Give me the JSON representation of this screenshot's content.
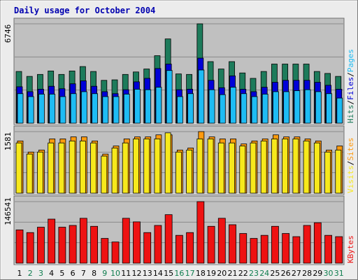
{
  "chart_data": {
    "type": "bar",
    "title": "Daily usage for October 2004",
    "categories": [
      "1",
      "2",
      "3",
      "4",
      "5",
      "6",
      "7",
      "8",
      "9",
      "10",
      "11",
      "12",
      "13",
      "14",
      "15",
      "16",
      "17",
      "18",
      "19",
      "20",
      "21",
      "22",
      "23",
      "24",
      "25",
      "26",
      "27",
      "28",
      "29",
      "30",
      "31"
    ],
    "weekend_days": [
      "2",
      "3",
      "9",
      "10",
      "16",
      "17",
      "23",
      "24",
      "30",
      "31"
    ],
    "colors": {
      "frame": "#ececec",
      "panel": "#c0c0c0",
      "title": "#0000b0",
      "hits": "#1d7b5b",
      "files": "#0000d8",
      "pages": "#1ebcf4",
      "visits": "#f7e81c",
      "sites": "#ff9a0e",
      "kbytes": "#ee1212",
      "weekday_label": "#000000",
      "weekend_label": "#0f7e4f"
    },
    "panels": [
      {
        "max_label": "6746",
        "ylim": [
          0,
          6746
        ],
        "side_labels": [
          {
            "text": "Hits",
            "color": "#1d7b5b"
          },
          {
            "text": "/",
            "color": "#000000"
          },
          {
            "text": "Files",
            "color": "#0000d8"
          },
          {
            "text": "/",
            "color": "#000000"
          },
          {
            "text": "Pages",
            "color": "#1ebcf4"
          }
        ],
        "series": [
          {
            "name": "Hits",
            "color": "#1d7b5b",
            "values": [
              3511,
              3177,
              3311,
              3545,
              3311,
              3545,
              3845,
              3511,
              2909,
              2943,
              3311,
              3478,
              3679,
              4582,
              5720,
              3345,
              3311,
              6746,
              4180,
              3679,
              4180,
              3411,
              3043,
              3511,
              4014,
              4014,
              4014,
              4014,
              3511,
              3378,
              3177
            ]
          },
          {
            "name": "Files",
            "color": "#0000d8",
            "values": [
              2474,
              2140,
              2307,
              2508,
              2340,
              2675,
              2876,
              2508,
              2140,
              2006,
              2274,
              2809,
              3043,
              3712,
              4014,
              2274,
              2307,
              4416,
              2909,
              2408,
              3211,
              2307,
              2140,
              2441,
              2776,
              2910,
              2910,
              2910,
              2776,
              2574,
              2307
            ]
          },
          {
            "name": "Pages",
            "color": "#1ebcf4",
            "values": [
              2006,
              1806,
              1973,
              1973,
              1806,
              2006,
              2140,
              2006,
              1806,
              1806,
              1973,
              2306,
              2274,
              2441,
              3578,
              1806,
              2006,
              3611,
              2274,
              1940,
              2441,
              2006,
              1806,
              1973,
              2140,
              2140,
              2206,
              2274,
              2140,
              2006,
              1706
            ]
          }
        ]
      },
      {
        "max_label": "1581",
        "ylim": [
          0,
          1581
        ],
        "side_labels": [
          {
            "text": "Visits",
            "color": "#f7e81c"
          },
          {
            "text": "/",
            "color": "#000000"
          },
          {
            "text": "Sites",
            "color": "#ff9a0e"
          }
        ],
        "series": [
          {
            "name": "Sites",
            "color": "#ff9a0e",
            "values": [
              1341,
              1056,
              1108,
              1393,
              1393,
              1445,
              1445,
              1341,
              1004,
              1212,
              1393,
              1445,
              1445,
              1497,
              1497,
              1108,
              1160,
              1581,
              1445,
              1393,
              1393,
              1264,
              1341,
              1393,
              1497,
              1445,
              1445,
              1393,
              1341,
              1108,
              1212
            ]
          },
          {
            "name": "Visits",
            "color": "#f7e81c",
            "values": [
              1290,
              1004,
              1056,
              1290,
              1290,
              1341,
              1341,
              1290,
              952,
              1160,
              1290,
              1393,
              1393,
              1393,
              1549,
              1056,
              1108,
              1393,
              1393,
              1290,
              1290,
              1212,
              1290,
              1341,
              1393,
              1393,
              1393,
              1341,
              1290,
              1056,
              1108
            ]
          }
        ]
      },
      {
        "max_label": "146541",
        "ylim": [
          0,
          146541
        ],
        "side_labels": [
          {
            "text": "KBytes",
            "color": "#ee1212"
          }
        ],
        "series": [
          {
            "name": "KBytes",
            "color": "#ee1212",
            "values": [
              79300,
              72900,
              85700,
              104900,
              85700,
              89900,
              106900,
              87800,
              59000,
              50500,
              106900,
              98400,
              72900,
              89900,
              115500,
              66300,
              72900,
              146541,
              87800,
              106900,
              91600,
              70700,
              59000,
              66300,
              87800,
              70700,
              63200,
              89900,
              96300,
              66300,
              63200
            ]
          }
        ]
      }
    ]
  }
}
